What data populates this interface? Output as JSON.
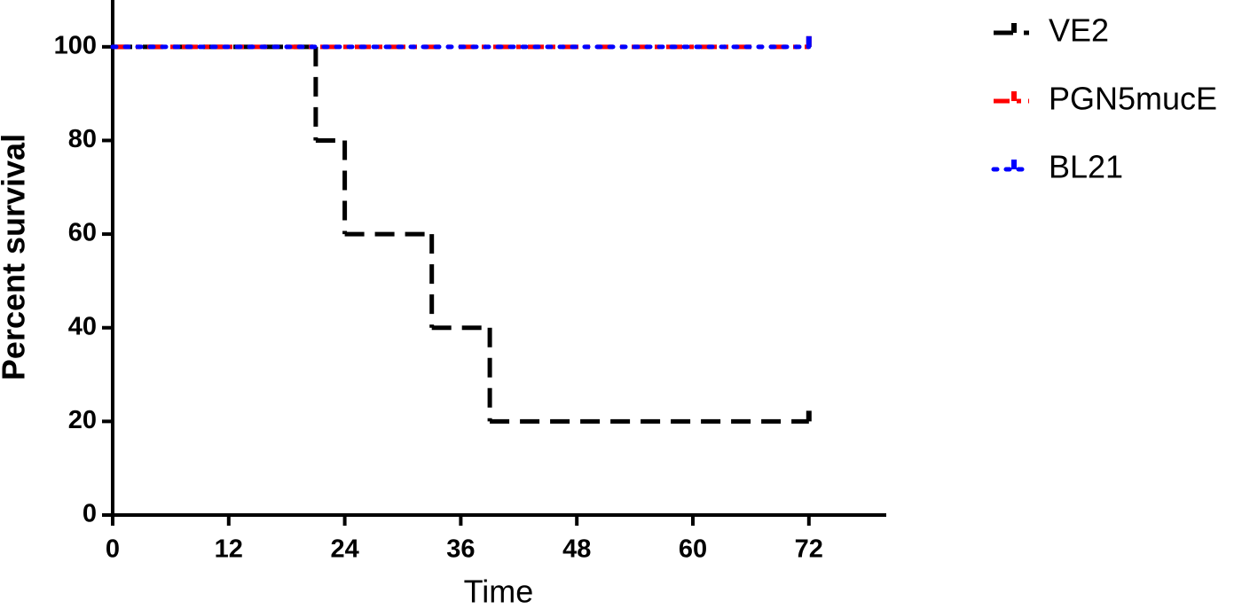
{
  "chart_data": {
    "type": "survival",
    "x_label": "Time",
    "y_label": "Percent survival",
    "xlim": [
      0,
      80
    ],
    "xticks": [
      0,
      12,
      24,
      36,
      48,
      60,
      72
    ],
    "ylim": [
      0,
      110
    ],
    "yticks": [
      0,
      20,
      40,
      60,
      80,
      100
    ],
    "series": [
      {
        "name": "VE2",
        "color": "#000000",
        "x": [
          0,
          21,
          24,
          33,
          39,
          72
        ],
        "values": [
          100,
          80,
          60,
          40,
          20,
          20
        ]
      },
      {
        "name": "PGN5mucE",
        "color": "#ff0000",
        "x": [
          0,
          72
        ],
        "values": [
          100,
          100
        ]
      },
      {
        "name": "BL21",
        "color": "#0000ff",
        "x": [
          0,
          72
        ],
        "values": [
          100,
          100
        ]
      }
    ]
  }
}
